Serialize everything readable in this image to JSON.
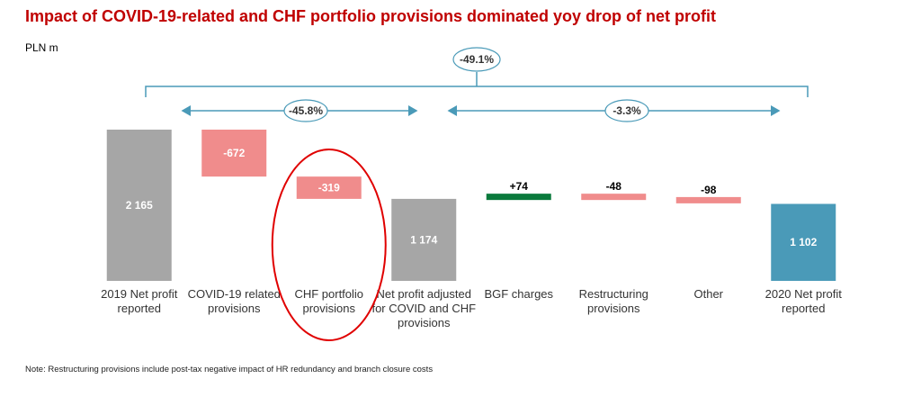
{
  "title": "Impact of COVID-19-related and CHF portfolio provisions dominated yoy drop of net profit",
  "unit": "PLN m",
  "note": "Note: Restructuring provisions include post-tax negative impact of HR redundancy and branch closure costs",
  "colors": {
    "total": "#a6a6a6",
    "negative": "#f08c8c",
    "positive": "#0a7a3c",
    "final": "#4a9ab8",
    "bracket": "#4a9ab8",
    "highlight_ellipse": "#e00000"
  },
  "chart_data": {
    "type": "bar",
    "subtype": "waterfall",
    "categories": [
      [
        "2019 Net profit",
        "reported"
      ],
      [
        "COVID-19 related",
        "provisions"
      ],
      [
        "CHF portfolio",
        "provisions"
      ],
      [
        "Net profit adjusted",
        "for COVID and CHF",
        "provisions"
      ],
      [
        "BGF charges"
      ],
      [
        "Restructuring",
        "provisions"
      ],
      [
        "Other"
      ],
      [
        "2020 Net profit",
        "reported"
      ]
    ],
    "steps": [
      {
        "kind": "total",
        "value": 2165,
        "label": "2 165"
      },
      {
        "kind": "delta",
        "value": -672,
        "label": "-672"
      },
      {
        "kind": "delta",
        "value": -319,
        "label": "-319"
      },
      {
        "kind": "total",
        "value": 1174,
        "label": "1 174"
      },
      {
        "kind": "delta",
        "value": 74,
        "label": "+74"
      },
      {
        "kind": "delta",
        "value": -48,
        "label": "-48"
      },
      {
        "kind": "delta",
        "value": -98,
        "label": "-98"
      },
      {
        "kind": "final",
        "value": 1102,
        "label": "1 102"
      }
    ],
    "annotations": {
      "overall_change": "-49.1%",
      "first_segment_change": "-45.8%",
      "second_segment_change": "-3.3%"
    },
    "highlighted_category_index": 2
  }
}
